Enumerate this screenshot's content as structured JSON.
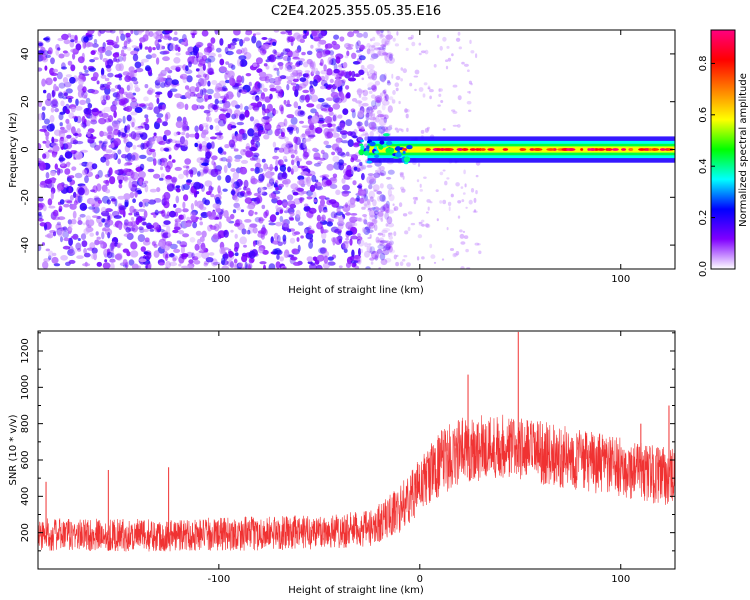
{
  "figure": {
    "title": "C2E4.2025.355.05.35.E16"
  },
  "chart_data": [
    {
      "type": "heatmap",
      "xlabel": "Height of straight line (km)",
      "ylabel": "Frequency (Hz)",
      "xlim": [
        -190,
        127
      ],
      "ylim": [
        -50,
        50
      ],
      "x_ticks": [
        -100,
        0,
        100
      ],
      "y_ticks": [
        -40,
        -20,
        0,
        20,
        40
      ],
      "noise_region_x": [
        -190,
        -20
      ],
      "signal_start_x": -30,
      "signal_frequency_hz": 0,
      "colorbar": {
        "label": "Normalized spectral amplitude",
        "range": [
          0,
          0.93
        ],
        "ticks": [
          0.0,
          0.2,
          0.4,
          0.6,
          0.8
        ],
        "colors": [
          "#ffffff",
          "#8000ff",
          "#0000ff",
          "#00ffff",
          "#00ff00",
          "#ffff00",
          "#ff8000",
          "#ff0000",
          "#ff0080"
        ]
      }
    },
    {
      "type": "line",
      "xlabel": "Height of straight line (km)",
      "ylabel": "SNR (10 * v/v)",
      "xlim": [
        -190,
        127
      ],
      "ylim": [
        0,
        1310
      ],
      "x_ticks": [
        -100,
        0,
        100
      ],
      "y_ticks": [
        200,
        400,
        600,
        800,
        1000,
        1200
      ],
      "color": "#f03232",
      "trend": {
        "x": [
          -190,
          -130,
          -60,
          -25,
          -10,
          0,
          10,
          20,
          40,
          80,
          127
        ],
        "mean": [
          190,
          185,
          200,
          220,
          330,
          460,
          580,
          650,
          680,
          600,
          500
        ],
        "spread": [
          90,
          90,
          95,
          100,
          130,
          150,
          180,
          190,
          180,
          170,
          160
        ]
      },
      "spikes": [
        {
          "x": 49,
          "y": 1305
        },
        {
          "x": 24,
          "y": 1070
        },
        {
          "x": -125,
          "y": 560
        },
        {
          "x": -155,
          "y": 545
        },
        {
          "x": -186,
          "y": 480
        },
        {
          "x": 124,
          "y": 900
        },
        {
          "x": 110,
          "y": 800
        }
      ]
    }
  ]
}
